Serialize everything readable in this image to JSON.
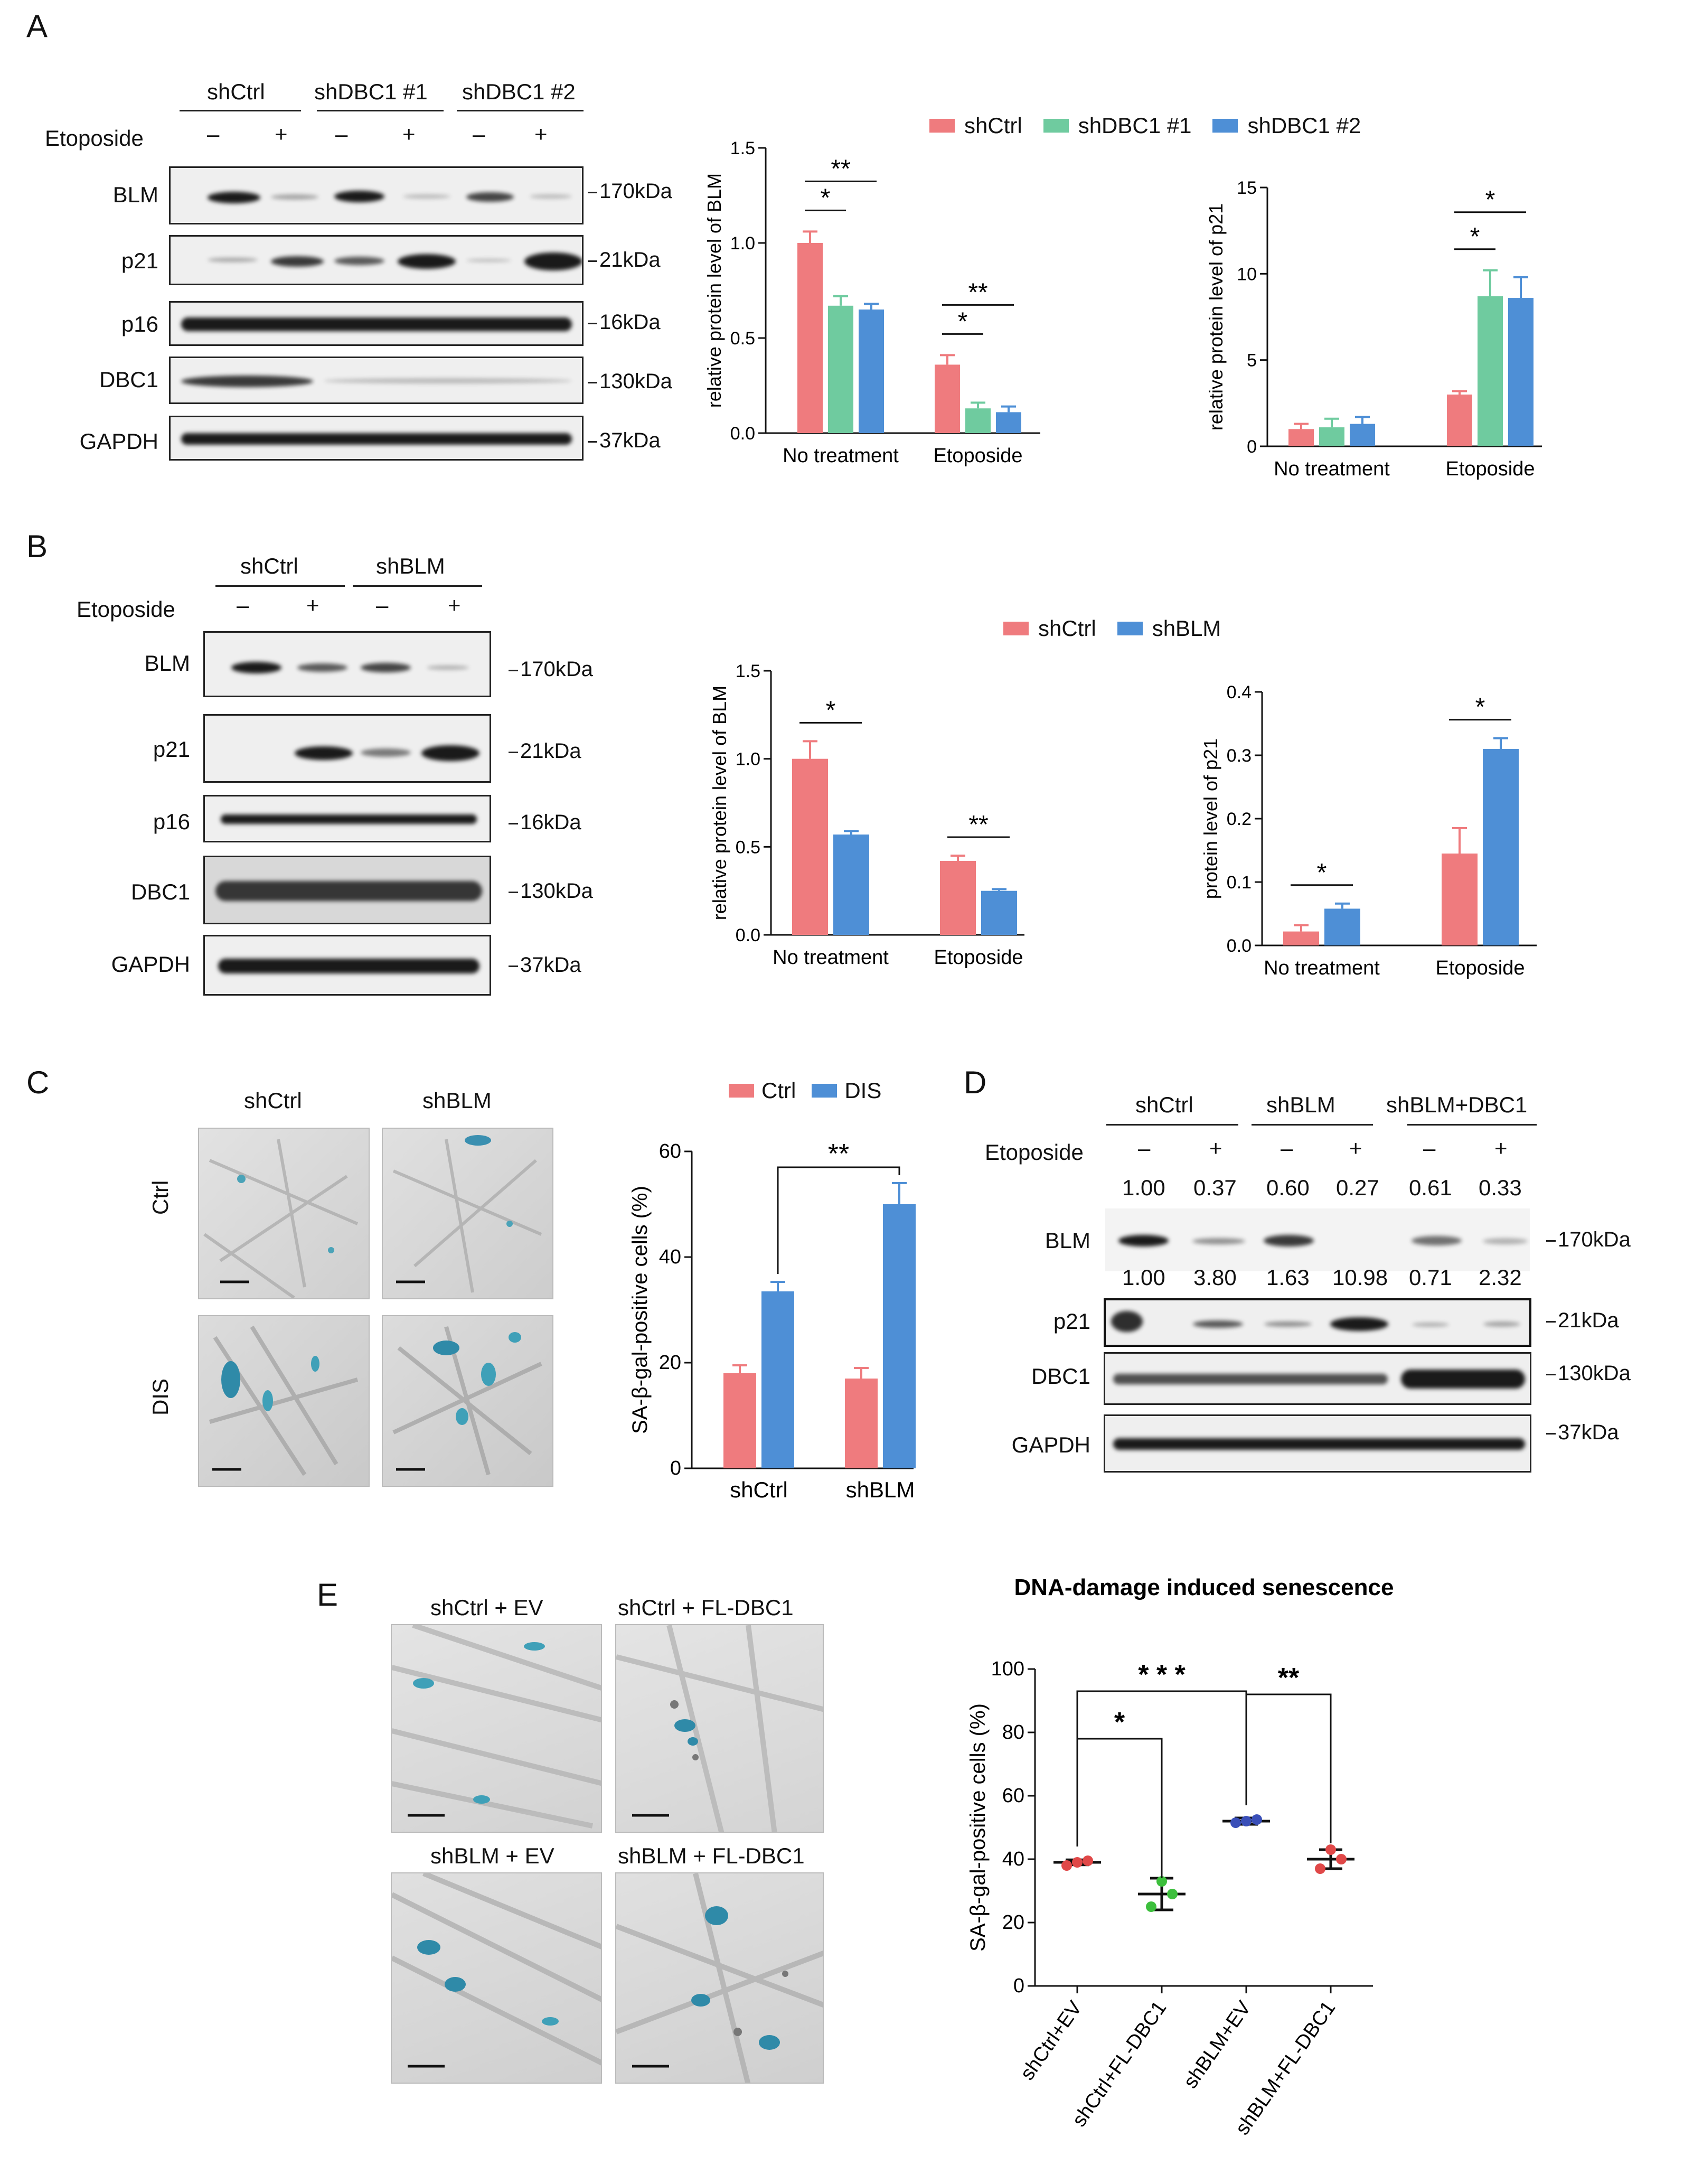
{
  "panels": {
    "A": {
      "label": "A",
      "blot": {
        "groups": [
          "shCtrl",
          "shDBC1 #1",
          "shDBC1 #2"
        ],
        "treatment_label": "Etoposide",
        "signs": [
          "–",
          "+",
          "–",
          "+",
          "–",
          "+"
        ],
        "rows": [
          {
            "name": "BLM",
            "kda": "170kDa"
          },
          {
            "name": "p21",
            "kda": "21kDa"
          },
          {
            "name": "p16",
            "kda": "16kDa"
          },
          {
            "name": "DBC1",
            "kda": "130kDa"
          },
          {
            "name": "GAPDH",
            "kda": "37kDa"
          }
        ]
      },
      "legend": [
        "shCtrl",
        "shDBC1 #1",
        "shDBC1 #2"
      ]
    },
    "B": {
      "label": "B",
      "blot": {
        "groups": [
          "shCtrl",
          "shBLM"
        ],
        "treatment_label": "Etoposide",
        "signs": [
          "–",
          "+",
          "–",
          "+"
        ],
        "rows": [
          {
            "name": "BLM",
            "kda": "170kDa"
          },
          {
            "name": "p21",
            "kda": "21kDa"
          },
          {
            "name": "p16",
            "kda": "16kDa"
          },
          {
            "name": "DBC1",
            "kda": "130kDa"
          },
          {
            "name": "GAPDH",
            "kda": "37kDa"
          }
        ]
      },
      "legend": [
        "shCtrl",
        "shBLM"
      ]
    },
    "C": {
      "label": "C",
      "col_labels": [
        "shCtrl",
        "shBLM"
      ],
      "row_labels": [
        "Ctrl",
        "DIS"
      ],
      "legend": [
        "Ctrl",
        "DIS"
      ]
    },
    "D": {
      "label": "D",
      "groups": [
        "shCtrl",
        "shBLM",
        "shBLM+DBC1"
      ],
      "treatment_label": "Etoposide",
      "signs": [
        "–",
        "+",
        "–",
        "+",
        "–",
        "+"
      ],
      "blm_quant": [
        "1.00",
        "0.37",
        "0.60",
        "0.27",
        "0.61",
        "0.33"
      ],
      "p21_quant": [
        "1.00",
        "3.80",
        "1.63",
        "10.98",
        "0.71",
        "2.32"
      ],
      "rows": [
        {
          "name": "BLM",
          "kda": "170kDa"
        },
        {
          "name": "p21",
          "kda": "21kDa"
        },
        {
          "name": "DBC1",
          "kda": "130kDa"
        },
        {
          "name": "GAPDH",
          "kda": "37kDa"
        }
      ]
    },
    "E": {
      "label": "E",
      "image_labels": [
        "shCtrl + EV",
        "shCtrl + FL-DBC1",
        "shBLM + EV",
        "shBLM + FL-DBC1"
      ]
    }
  },
  "colors": {
    "red": "#EF7B7E",
    "green": "#6FCB9F",
    "blue": "#4E8FD6",
    "dark_blue": "#3A4FB8"
  },
  "chart_data": [
    {
      "id": "A-BLM",
      "type": "bar",
      "categories": [
        "No treatment",
        "Etoposide"
      ],
      "series": [
        {
          "name": "shCtrl",
          "values": [
            1.0,
            0.36
          ],
          "errors": [
            0.06,
            0.05
          ]
        },
        {
          "name": "shDBC1 #1",
          "values": [
            0.67,
            0.13
          ],
          "errors": [
            0.05,
            0.03
          ]
        },
        {
          "name": "shDBC1 #2",
          "values": [
            0.65,
            0.11
          ],
          "errors": [
            0.03,
            0.03
          ]
        }
      ],
      "ylabel": "relative protein level of BLM",
      "ylim": [
        0,
        1.5
      ],
      "yticks": [
        "0.0",
        "0.5",
        "1.0",
        "1.5"
      ],
      "significance": [
        "*",
        "**",
        "*",
        "**"
      ]
    },
    {
      "id": "A-p21",
      "type": "bar",
      "categories": [
        "No treatment",
        "Etoposide"
      ],
      "series": [
        {
          "name": "shCtrl",
          "values": [
            1.0,
            3.0
          ],
          "errors": [
            0.3,
            0.2
          ]
        },
        {
          "name": "shDBC1 #1",
          "values": [
            1.1,
            8.7
          ],
          "errors": [
            0.5,
            1.5
          ]
        },
        {
          "name": "shDBC1 #2",
          "values": [
            1.3,
            8.6
          ],
          "errors": [
            0.4,
            1.2
          ]
        }
      ],
      "ylabel": "relative protein level of p21",
      "ylim": [
        0,
        15
      ],
      "yticks": [
        "0",
        "5",
        "10",
        "15"
      ],
      "significance": [
        "*",
        "*"
      ]
    },
    {
      "id": "B-BLM",
      "type": "bar",
      "categories": [
        "No treatment",
        "Etoposide"
      ],
      "series": [
        {
          "name": "shCtrl",
          "values": [
            1.0,
            0.42
          ],
          "errors": [
            0.1,
            0.03
          ]
        },
        {
          "name": "shBLM",
          "values": [
            0.57,
            0.25
          ],
          "errors": [
            0.02,
            0.01
          ]
        }
      ],
      "ylabel": "relative protein level of BLM",
      "ylim": [
        0,
        1.5
      ],
      "yticks": [
        "0.0",
        "0.5",
        "1.0",
        "1.5"
      ],
      "significance": [
        "*",
        "**"
      ]
    },
    {
      "id": "B-p21",
      "type": "bar",
      "categories": [
        "No treatment",
        "Etoposide"
      ],
      "series": [
        {
          "name": "shCtrl",
          "values": [
            0.022,
            0.145
          ],
          "errors": [
            0.01,
            0.04
          ]
        },
        {
          "name": "shBLM",
          "values": [
            0.058,
            0.31
          ],
          "errors": [
            0.008,
            0.017
          ]
        }
      ],
      "ylabel": "protein level of p21",
      "ylim": [
        0,
        0.4
      ],
      "yticks": [
        "0.0",
        "0.1",
        "0.2",
        "0.3",
        "0.4"
      ],
      "significance": [
        "*",
        "*"
      ]
    },
    {
      "id": "C-SA",
      "type": "bar",
      "categories": [
        "shCtrl",
        "shBLM"
      ],
      "series": [
        {
          "name": "Ctrl",
          "values": [
            18,
            17
          ],
          "errors": [
            1.5,
            2
          ]
        },
        {
          "name": "DIS",
          "values": [
            33.5,
            50
          ],
          "errors": [
            1.8,
            4
          ]
        }
      ],
      "ylabel": "SA-β-gal-positive cells (%)",
      "ylim": [
        0,
        60
      ],
      "yticks": [
        "0",
        "20",
        "40",
        "60"
      ],
      "significance": [
        "**"
      ]
    },
    {
      "id": "E-SA",
      "type": "scatter",
      "title": "DNA-damage induced senescence",
      "categories": [
        "shCtrl+EV",
        "shCtrl+FL-DBC1",
        "shBLM+EV",
        "shBLM+FL-DBC1"
      ],
      "means": [
        39,
        29,
        52,
        40
      ],
      "errors": [
        0.8,
        5,
        1,
        3
      ],
      "points": [
        [
          38,
          39,
          39.5
        ],
        [
          25,
          33,
          29
        ],
        [
          51.5,
          52,
          52.5
        ],
        [
          37,
          43,
          40
        ]
      ],
      "point_colors": [
        "#E04848",
        "#3DBF3D",
        "#3A4FB8",
        "#E04848"
      ],
      "ylabel": "SA-β-gal-positive cells (%)",
      "ylim": [
        0,
        100
      ],
      "yticks": [
        "0",
        "20",
        "40",
        "60",
        "80",
        "100"
      ],
      "significance": [
        "* * *",
        "*",
        "**"
      ]
    }
  ]
}
